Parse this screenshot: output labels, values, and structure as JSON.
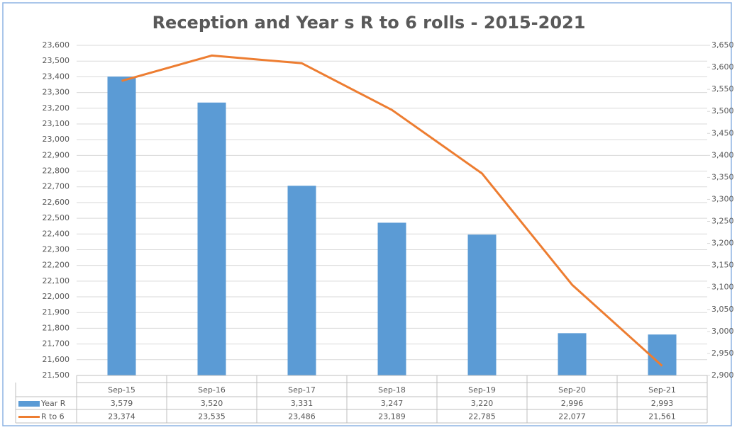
{
  "chart_data": {
    "type": "bar-line",
    "title": "Reception and Year s R to 6 rolls - 2015-2021",
    "categories": [
      "Sep-15",
      "Sep-16",
      "Sep-17",
      "Sep-18",
      "Sep-19",
      "Sep-20",
      "Sep-21"
    ],
    "series": [
      {
        "name": "Year R",
        "type": "bar",
        "axis": "y2",
        "color": "#5b9bd5",
        "values": [
          3579,
          3520,
          3331,
          3247,
          3220,
          2996,
          2993
        ],
        "value_labels": [
          "3,579",
          "3,520",
          "3,331",
          "3,247",
          "3,220",
          "2,996",
          "2,993"
        ]
      },
      {
        "name": "R to 6",
        "type": "line",
        "axis": "y",
        "color": "#ed7d31",
        "values": [
          23374,
          23535,
          23486,
          23189,
          22785,
          22077,
          21561
        ],
        "value_labels": [
          "23,374",
          "23,535",
          "23,486",
          "23,189",
          "22,785",
          "22,077",
          "21,561"
        ]
      }
    ],
    "ylim": [
      21500,
      23600
    ],
    "yticks": [
      {
        "value": 21500,
        "label": "21,500"
      },
      {
        "value": 21600,
        "label": "21,600"
      },
      {
        "value": 21700,
        "label": "21,700"
      },
      {
        "value": 21800,
        "label": "21,800"
      },
      {
        "value": 21900,
        "label": "21,900"
      },
      {
        "value": 22000,
        "label": "22,000"
      },
      {
        "value": 22100,
        "label": "22,100"
      },
      {
        "value": 22200,
        "label": "22,200"
      },
      {
        "value": 22300,
        "label": "22,300"
      },
      {
        "value": 22400,
        "label": "22,400"
      },
      {
        "value": 22500,
        "label": "22,500"
      },
      {
        "value": 22600,
        "label": "22,600"
      },
      {
        "value": 22700,
        "label": "22,700"
      },
      {
        "value": 22800,
        "label": "22,800"
      },
      {
        "value": 22900,
        "label": "22,900"
      },
      {
        "value": 23000,
        "label": "23,000"
      },
      {
        "value": 23100,
        "label": "23,100"
      },
      {
        "value": 23200,
        "label": "23,200"
      },
      {
        "value": 23300,
        "label": "23,300"
      },
      {
        "value": 23400,
        "label": "23,400"
      },
      {
        "value": 23500,
        "label": "23,500"
      },
      {
        "value": 23600,
        "label": "23,600"
      }
    ],
    "y2lim": [
      2900,
      3650
    ],
    "y2ticks": [
      {
        "value": 2900,
        "label": "2,900"
      },
      {
        "value": 2950,
        "label": "2,950"
      },
      {
        "value": 3000,
        "label": "3,000"
      },
      {
        "value": 3050,
        "label": "3,050"
      },
      {
        "value": 3100,
        "label": "3,100"
      },
      {
        "value": 3150,
        "label": "3,150"
      },
      {
        "value": 3200,
        "label": "3,200"
      },
      {
        "value": 3250,
        "label": "3,250"
      },
      {
        "value": 3300,
        "label": "3,300"
      },
      {
        "value": 3350,
        "label": "3,350"
      },
      {
        "value": 3400,
        "label": "3,400"
      },
      {
        "value": 3450,
        "label": "3,450"
      },
      {
        "value": 3500,
        "label": "3,500"
      },
      {
        "value": 3550,
        "label": "3,550"
      },
      {
        "value": 3600,
        "label": "3,600"
      },
      {
        "value": 3650,
        "label": "3,650"
      }
    ],
    "grid": true
  }
}
